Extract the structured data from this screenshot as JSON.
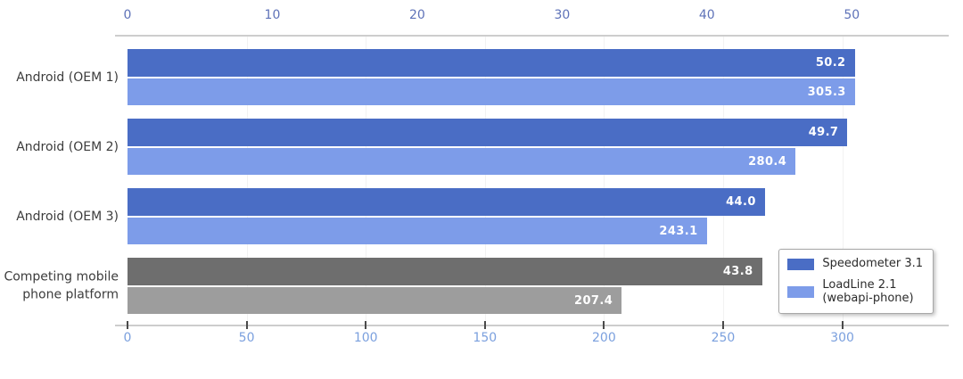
{
  "chart_data": {
    "type": "bar",
    "orientation": "horizontal",
    "title": "",
    "categories": [
      "Android (OEM 1)",
      "Android (OEM 2)",
      "Android (OEM 3)",
      "Competing mobile\nphone platform"
    ],
    "series": [
      {
        "name": "Speedometer 3.1",
        "axis": "top",
        "values": [
          50.2,
          49.7,
          44.0,
          43.8
        ],
        "value_labels": [
          "50.2",
          "49.7",
          "44.0",
          "43.8"
        ],
        "bar_colors": [
          "#4a6dc5",
          "#4a6dc5",
          "#4a6dc5",
          "#6e6e6e"
        ]
      },
      {
        "name": "LoadLine 2.1\n(webapi-phone)",
        "axis": "bottom",
        "values": [
          305.3,
          280.4,
          243.1,
          207.4
        ],
        "value_labels": [
          "305.3",
          "280.4",
          "243.1",
          "207.4"
        ],
        "bar_colors": [
          "#7d9ce9",
          "#7d9ce9",
          "#7d9ce9",
          "#9d9d9d"
        ]
      }
    ],
    "top_axis": {
      "ticks": [
        0,
        10,
        20,
        30,
        40,
        50
      ],
      "range": [
        0,
        56.2
      ],
      "label_color": "#5e72b8",
      "side": "top"
    },
    "bottom_axis": {
      "ticks": [
        0,
        50,
        100,
        150,
        200,
        250,
        300
      ],
      "range": [
        0,
        341.7
      ],
      "label_color": "#7ba0de",
      "side": "bottom"
    },
    "legend": {
      "position": "lower right",
      "entries": [
        {
          "label": "Speedometer 3.1",
          "color": "#4a6dc5"
        },
        {
          "label": "LoadLine 2.1\n(webapi-phone)",
          "color": "#7d9ce9"
        }
      ]
    },
    "value_label_color": "#ffffff",
    "category_label_color": "#3c3c3c",
    "grid": "faint-vertical"
  }
}
